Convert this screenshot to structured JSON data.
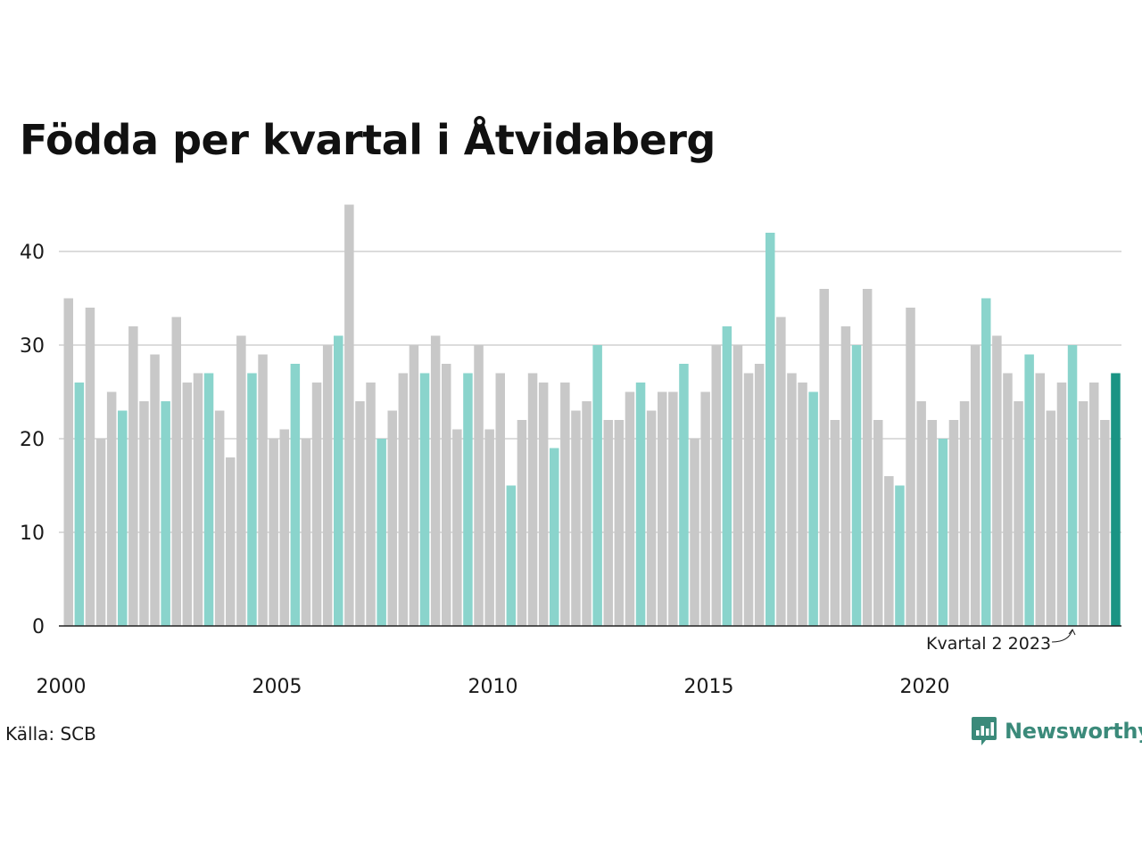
{
  "title": "Födda per kvartal i Åtvidaberg",
  "source": "Källa: SCB",
  "brand": "Newsworthy",
  "colors": {
    "default": "#c8c8c8",
    "highlight": "#8ad4cc",
    "latest": "#1a9484",
    "grid": "#dcdcdc",
    "axis": "#222222",
    "brand": "#3b8a7a"
  },
  "icons": {
    "logo": "bar-chart-speech-bubble-icon"
  },
  "chart_data": {
    "type": "bar",
    "start": "2000 Q1",
    "x_ticks": [
      "2000",
      "2005",
      "2010",
      "2015",
      "2020"
    ],
    "ylim": [
      0,
      45
    ],
    "y_ticks": [
      0,
      10,
      20,
      30,
      40
    ],
    "grid": true,
    "highlighted_quarter": 2,
    "annotation": "Kvartal 2 2023",
    "values": [
      35,
      26,
      34,
      20,
      25,
      23,
      32,
      24,
      29,
      24,
      33,
      26,
      27,
      27,
      23,
      18,
      31,
      27,
      29,
      20,
      21,
      28,
      20,
      26,
      30,
      31,
      45,
      24,
      26,
      20,
      23,
      27,
      30,
      27,
      31,
      28,
      21,
      27,
      30,
      21,
      27,
      15,
      22,
      27,
      26,
      19,
      26,
      23,
      24,
      30,
      22,
      22,
      25,
      26,
      23,
      25,
      25,
      28,
      20,
      25,
      30,
      32,
      30,
      27,
      28,
      42,
      33,
      27,
      26,
      25,
      36,
      22,
      32,
      30,
      36,
      22,
      16,
      15,
      34,
      24,
      22,
      20,
      22,
      24,
      30,
      35,
      31,
      27,
      24,
      29,
      27,
      23,
      26,
      30,
      24,
      26,
      22,
      27
    ]
  }
}
